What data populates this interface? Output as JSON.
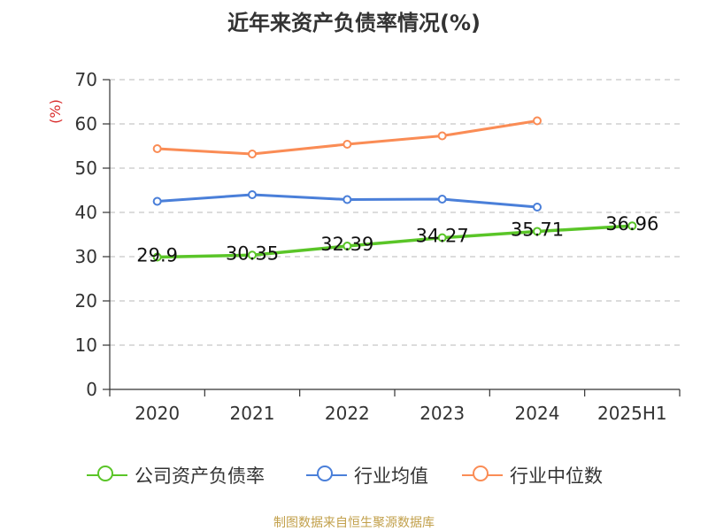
{
  "title": "近年来资产负债率情况(%)",
  "footer": "制图数据来自恒生聚源数据库",
  "chart_data": {
    "type": "line",
    "title": "近年来资产负债率情况(%)",
    "ylabel": "(%)",
    "xlabel": "",
    "ylim": [
      0,
      70
    ],
    "yticks": [
      0,
      10,
      20,
      30,
      40,
      50,
      60,
      70
    ],
    "categories": [
      "2020",
      "2021",
      "2022",
      "2023",
      "2024",
      "2025H1"
    ],
    "grid": "horizontal dashed",
    "legend_position": "bottom",
    "series": [
      {
        "name": "公司资产负债率",
        "color": "#5ac528",
        "values": [
          29.9,
          30.35,
          32.39,
          34.27,
          35.71,
          36.96
        ],
        "labels": [
          "29.9",
          "30.35",
          "32.39",
          "34.27",
          "35.71",
          "36.96"
        ]
      },
      {
        "name": "行业均值",
        "color": "#4a7fd9",
        "values": [
          42.5,
          44.0,
          42.9,
          43.0,
          41.2,
          null
        ]
      },
      {
        "name": "行业中位数",
        "color": "#fa8c55",
        "values": [
          54.4,
          53.2,
          55.4,
          57.3,
          60.7,
          null
        ]
      }
    ]
  }
}
